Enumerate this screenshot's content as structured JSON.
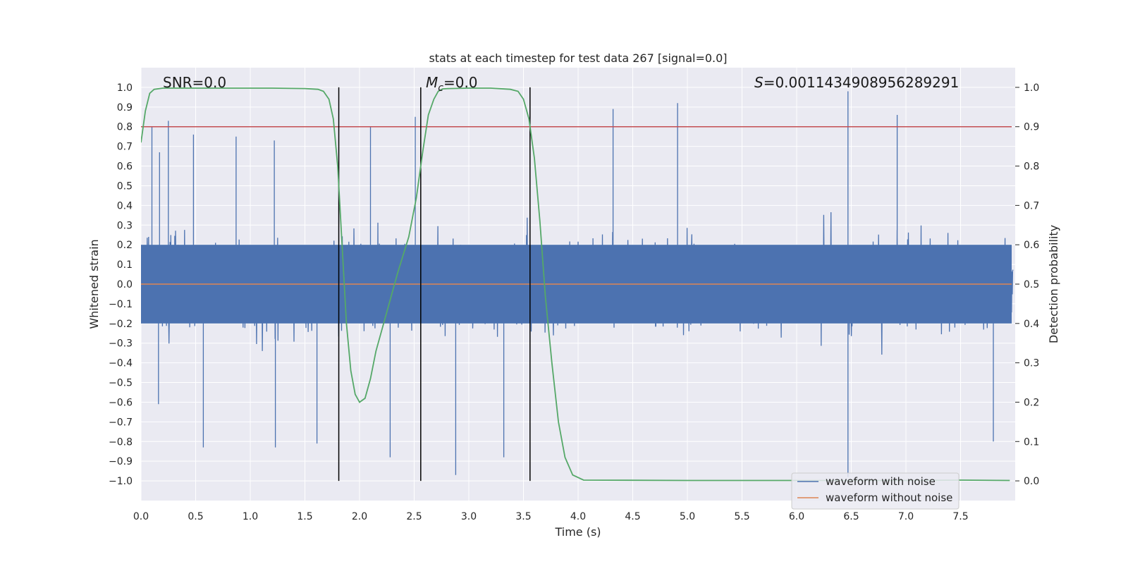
{
  "chart_data": {
    "type": "line",
    "title": "stats at each timestep for test data 267 [signal=0.0]",
    "xlabel": "Time (s)",
    "ylabel": "Whitened strain",
    "y2label": "Detection probability",
    "xlim": [
      0.0,
      8.0
    ],
    "ylim": [
      -1.1,
      1.1
    ],
    "y2lim": [
      -0.05,
      1.05
    ],
    "x_ticks": [
      0.0,
      0.5,
      1.0,
      1.5,
      2.0,
      2.5,
      3.0,
      3.5,
      4.0,
      4.5,
      5.0,
      5.5,
      6.0,
      6.5,
      7.0,
      7.5
    ],
    "x_tick_labels": [
      "0.0",
      "0.5",
      "1.0",
      "1.5",
      "2.0",
      "2.5",
      "3.0",
      "3.5",
      "4.0",
      "4.5",
      "5.0",
      "5.5",
      "6.0",
      "6.5",
      "7.0",
      "7.5"
    ],
    "y_ticks": [
      1.0,
      0.9,
      0.8,
      0.7,
      0.6,
      0.5,
      0.4,
      0.3,
      0.2,
      0.1,
      0.0,
      -0.1,
      -0.2,
      -0.3,
      -0.4,
      -0.5,
      -0.6,
      -0.7,
      -0.8,
      -0.9,
      -1.0
    ],
    "y_tick_labels": [
      "1.0",
      "0.9",
      "0.8",
      "0.7",
      "0.6",
      "0.5",
      "0.4",
      "0.3",
      "0.2",
      "0.1",
      "0.0",
      "−0.1",
      "−0.2",
      "−0.3",
      "−0.4",
      "−0.5",
      "−0.6",
      "−0.7",
      "−0.8",
      "−0.9",
      "−1.0"
    ],
    "y2_ticks": [
      1.0,
      0.9,
      0.8,
      0.7,
      0.6,
      0.5,
      0.4,
      0.3,
      0.2,
      0.1,
      0.0
    ],
    "y2_tick_labels": [
      "1.0",
      "0.9",
      "0.8",
      "0.7",
      "0.6",
      "0.5",
      "0.4",
      "0.3",
      "0.2",
      "0.1",
      "0.0"
    ],
    "annotations": {
      "snr": "SNR=0.0",
      "mc_symbol": "M",
      "mc_sub": "c",
      "mc_value": "=0.0",
      "s_symbol": "S",
      "s_value": "=0.0011434908956289291"
    },
    "threshold_line": {
      "y2": 0.9,
      "color": "#c44e52"
    },
    "vertical_lines_x": [
      1.81,
      2.56,
      3.56
    ],
    "legend": {
      "placement": "lower right",
      "entries": [
        {
          "label": "waveform with noise",
          "color": "#4c72b0"
        },
        {
          "label": "waveform without noise",
          "color": "#dd8452"
        }
      ]
    },
    "series": [
      {
        "name": "waveform with noise",
        "axis": "left",
        "color": "#4c72b0",
        "style": "dense noise",
        "envelope_typical": [
          -0.42,
          0.42
        ],
        "peaks": [
          {
            "x": 0.1,
            "y": 0.8
          },
          {
            "x": 0.16,
            "y": -0.61
          },
          {
            "x": 0.17,
            "y": 0.67
          },
          {
            "x": 0.25,
            "y": 0.83
          },
          {
            "x": 0.48,
            "y": 0.76
          },
          {
            "x": 0.57,
            "y": -0.83
          },
          {
            "x": 0.87,
            "y": 0.75
          },
          {
            "x": 1.22,
            "y": 0.73
          },
          {
            "x": 1.23,
            "y": -0.83
          },
          {
            "x": 1.61,
            "y": -0.81
          },
          {
            "x": 2.1,
            "y": 0.8
          },
          {
            "x": 2.28,
            "y": -0.88
          },
          {
            "x": 2.51,
            "y": 0.85
          },
          {
            "x": 2.88,
            "y": -0.97
          },
          {
            "x": 3.32,
            "y": -0.88
          },
          {
            "x": 4.32,
            "y": 0.89
          },
          {
            "x": 4.91,
            "y": 0.92
          },
          {
            "x": 6.47,
            "y": 0.98
          },
          {
            "x": 6.47,
            "y": -0.98
          },
          {
            "x": 6.92,
            "y": 0.86
          },
          {
            "x": 7.8,
            "y": -0.8
          }
        ]
      },
      {
        "name": "waveform without noise",
        "axis": "left",
        "color": "#dd8452",
        "x": [
          0.0,
          8.0
        ],
        "y": [
          0.0,
          0.0
        ]
      },
      {
        "name": "",
        "axis": "right",
        "color": "#55a868",
        "x": [
          0.0,
          0.04,
          0.08,
          0.12,
          0.2,
          0.4,
          0.8,
          1.2,
          1.5,
          1.62,
          1.67,
          1.72,
          1.76,
          1.8,
          1.84,
          1.88,
          1.92,
          1.96,
          2.0,
          2.05,
          2.1,
          2.15,
          2.25,
          2.35,
          2.45,
          2.52,
          2.58,
          2.63,
          2.68,
          2.72,
          2.76,
          2.82,
          3.0,
          3.2,
          3.38,
          3.45,
          3.5,
          3.55,
          3.6,
          3.65,
          3.7,
          3.76,
          3.82,
          3.88,
          3.95,
          4.05,
          5.0,
          6.0,
          7.0,
          7.5,
          7.95
        ],
        "y": [
          0.86,
          0.94,
          0.985,
          0.995,
          0.998,
          0.998,
          0.998,
          0.998,
          0.997,
          0.995,
          0.99,
          0.97,
          0.92,
          0.8,
          0.6,
          0.4,
          0.28,
          0.22,
          0.2,
          0.21,
          0.26,
          0.33,
          0.43,
          0.53,
          0.62,
          0.72,
          0.84,
          0.93,
          0.97,
          0.99,
          0.996,
          0.997,
          0.998,
          0.998,
          0.995,
          0.99,
          0.97,
          0.92,
          0.82,
          0.66,
          0.47,
          0.3,
          0.15,
          0.06,
          0.015,
          0.002,
          0.001,
          0.001,
          0.001,
          0.002,
          0.001
        ]
      }
    ]
  }
}
